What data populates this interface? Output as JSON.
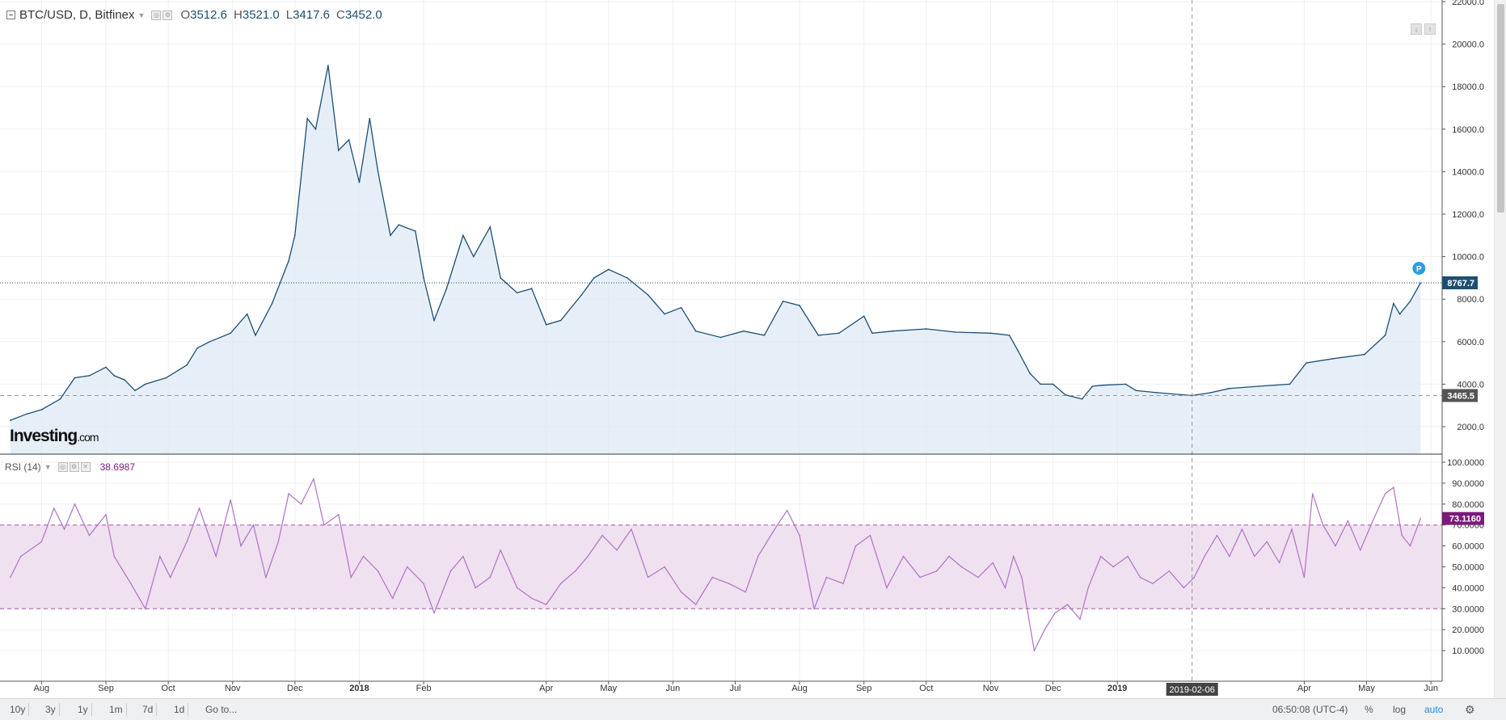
{
  "header": {
    "symbol": "BTC/USD, D, Bitfinex",
    "open_key": "O",
    "open_val": "3512.6",
    "high_key": "H",
    "high_val": "3521.0",
    "low_key": "L",
    "low_val": "3417.6",
    "close_key": "C",
    "close_val": "3452.0"
  },
  "rsi_header": {
    "label": "RSI (14)",
    "value": "38.6987"
  },
  "watermark": {
    "brand": "Investing",
    "suffix": ".com"
  },
  "badges": {
    "p": "P"
  },
  "colors": {
    "price_line": "#1d4e73",
    "price_fill": "#dde9f6",
    "rsi_line": "#b070c8",
    "rsi_band": "#f0e1f0",
    "rsi_label_bg": "#7b1a7b",
    "price_label_bg": "#1d4e73",
    "ref_label_bg": "#555555",
    "p_badge": "#2a9fe0"
  },
  "bottom_bar": {
    "ranges": [
      "10y",
      "3y",
      "1y",
      "1m",
      "7d",
      "1d"
    ],
    "goto": "Go to...",
    "time": "06:50:08 (UTC-4)",
    "percent": "%",
    "log": "log",
    "auto": "auto"
  },
  "chart_data": [
    {
      "type": "area",
      "title": "BTC/USD, D, Bitfinex",
      "x_tick_labels": [
        "Aug",
        "Sep",
        "Oct",
        "Nov",
        "Dec",
        "2018",
        "Feb",
        "Apr",
        "May",
        "Jun",
        "Jul",
        "Aug",
        "Sep",
        "Oct",
        "Nov",
        "Dec",
        "2019",
        "Apr",
        "May",
        "Jun"
      ],
      "y_ticks": [
        "22000.0",
        "20000.0",
        "18000.0",
        "16000.0",
        "14000.0",
        "12000.0",
        "10000.0",
        "8000.0",
        "6000.0",
        "4000.0",
        "2000.0"
      ],
      "ylim": [
        1000,
        22000
      ],
      "grid": true,
      "current_price_label": "8767.7",
      "crosshair_price_label": "3465.5",
      "crosshair_date_label": "2019-02-06",
      "series": [
        {
          "x": [
            "2017-07-17",
            "2017-07-25",
            "2017-08-01",
            "2017-08-10",
            "2017-08-17",
            "2017-08-24",
            "2017-09-01",
            "2017-09-05",
            "2017-09-10",
            "2017-09-15",
            "2017-09-20",
            "2017-09-30",
            "2017-10-10",
            "2017-10-15",
            "2017-10-21",
            "2017-10-31",
            "2017-11-08",
            "2017-11-12",
            "2017-11-20",
            "2017-11-28",
            "2017-12-01",
            "2017-12-07",
            "2017-12-11",
            "2017-12-17",
            "2017-12-22",
            "2017-12-27",
            "2018-01-01",
            "2018-01-06",
            "2018-01-10",
            "2018-01-16",
            "2018-01-20",
            "2018-01-28",
            "2018-02-01",
            "2018-02-06",
            "2018-02-12",
            "2018-02-20",
            "2018-02-25",
            "2018-03-05",
            "2018-03-10",
            "2018-03-18",
            "2018-03-25",
            "2018-04-01",
            "2018-04-08",
            "2018-04-18",
            "2018-04-24",
            "2018-05-01",
            "2018-05-10",
            "2018-05-20",
            "2018-05-28",
            "2018-06-05",
            "2018-06-12",
            "2018-06-24",
            "2018-07-05",
            "2018-07-15",
            "2018-07-24",
            "2018-08-01",
            "2018-08-10",
            "2018-08-20",
            "2018-09-01",
            "2018-09-05",
            "2018-09-15",
            "2018-10-01",
            "2018-10-15",
            "2018-11-01",
            "2018-11-10",
            "2018-11-14",
            "2018-11-20",
            "2018-11-25",
            "2018-12-01",
            "2018-12-07",
            "2018-12-15",
            "2018-12-20",
            "2018-12-25",
            "2019-01-05",
            "2019-01-10",
            "2019-01-20",
            "2019-02-06",
            "2019-02-15",
            "2019-02-24",
            "2019-03-10",
            "2019-03-25",
            "2019-04-02",
            "2019-04-15",
            "2019-04-30",
            "2019-05-10",
            "2019-05-14",
            "2019-05-17",
            "2019-05-22",
            "2019-05-27"
          ],
          "values": [
            2300,
            2600,
            2800,
            3300,
            4300,
            4400,
            4800,
            4400,
            4200,
            3700,
            4000,
            4300,
            4900,
            5700,
            6000,
            6400,
            7300,
            6300,
            7800,
            9800,
            11000,
            16500,
            16000,
            19000,
            15000,
            15500,
            13500,
            16500,
            14000,
            11000,
            11500,
            11200,
            9000,
            7000,
            8500,
            11000,
            10000,
            11400,
            9000,
            8300,
            8500,
            6800,
            7000,
            8200,
            9000,
            9400,
            9000,
            8200,
            7300,
            7600,
            6500,
            6200,
            6500,
            6300,
            7900,
            7700,
            6300,
            6400,
            7200,
            6400,
            6500,
            6600,
            6450,
            6400,
            6300,
            5600,
            4500,
            4000,
            4000,
            3500,
            3300,
            3900,
            3950,
            4000,
            3700,
            3600,
            3465,
            3600,
            3800,
            3900,
            4000,
            5000,
            5200,
            5400,
            6300,
            7800,
            7300,
            7900,
            8767.7
          ]
        }
      ]
    },
    {
      "type": "line",
      "title": "RSI (14)",
      "y_ticks": [
        "100.0000",
        "90.0000",
        "80.0000",
        "70.0000",
        "60.0000",
        "50.0000",
        "40.0000",
        "30.0000",
        "20.0000",
        "10.0000"
      ],
      "ylim": [
        5,
        100
      ],
      "band": [
        30,
        70
      ],
      "current_value_label": "73.1160",
      "series": [
        {
          "x": [
            "2017-07-17",
            "2017-07-22",
            "2017-08-01",
            "2017-08-07",
            "2017-08-12",
            "2017-08-17",
            "2017-08-24",
            "2017-09-01",
            "2017-09-05",
            "2017-09-13",
            "2017-09-20",
            "2017-09-27",
            "2017-10-02",
            "2017-10-10",
            "2017-10-16",
            "2017-10-24",
            "2017-10-31",
            "2017-11-05",
            "2017-11-11",
            "2017-11-17",
            "2017-11-23",
            "2017-11-28",
            "2017-12-04",
            "2017-12-10",
            "2017-12-15",
            "2017-12-22",
            "2017-12-28",
            "2018-01-03",
            "2018-01-10",
            "2018-01-17",
            "2018-01-24",
            "2018-02-01",
            "2018-02-06",
            "2018-02-14",
            "2018-02-20",
            "2018-02-26",
            "2018-03-05",
            "2018-03-10",
            "2018-03-18",
            "2018-03-25",
            "2018-04-01",
            "2018-04-08",
            "2018-04-15",
            "2018-04-21",
            "2018-04-28",
            "2018-05-05",
            "2018-05-12",
            "2018-05-20",
            "2018-05-28",
            "2018-06-05",
            "2018-06-12",
            "2018-06-20",
            "2018-06-28",
            "2018-07-06",
            "2018-07-12",
            "2018-07-20",
            "2018-07-26",
            "2018-08-01",
            "2018-08-08",
            "2018-08-14",
            "2018-08-22",
            "2018-08-28",
            "2018-09-04",
            "2018-09-12",
            "2018-09-20",
            "2018-09-28",
            "2018-10-06",
            "2018-10-12",
            "2018-10-18",
            "2018-10-26",
            "2018-11-02",
            "2018-11-08",
            "2018-11-12",
            "2018-11-16",
            "2018-11-22",
            "2018-11-27",
            "2018-12-02",
            "2018-12-08",
            "2018-12-14",
            "2018-12-18",
            "2018-12-24",
            "2018-12-30",
            "2019-01-06",
            "2019-01-12",
            "2019-01-18",
            "2019-01-26",
            "2019-02-02",
            "2019-02-07",
            "2019-02-12",
            "2019-02-18",
            "2019-02-24",
            "2019-03-02",
            "2019-03-08",
            "2019-03-14",
            "2019-03-20",
            "2019-03-26",
            "2019-04-01",
            "2019-04-05",
            "2019-04-10",
            "2019-04-16",
            "2019-04-22",
            "2019-04-28",
            "2019-05-04",
            "2019-05-10",
            "2019-05-14",
            "2019-05-18",
            "2019-05-22",
            "2019-05-27"
          ],
          "values": [
            45,
            55,
            62,
            78,
            68,
            80,
            65,
            75,
            55,
            42,
            30,
            55,
            45,
            62,
            78,
            55,
            82,
            60,
            70,
            45,
            62,
            85,
            80,
            92,
            70,
            75,
            45,
            55,
            48,
            35,
            50,
            42,
            28,
            48,
            55,
            40,
            45,
            58,
            40,
            35,
            32,
            42,
            48,
            55,
            65,
            58,
            68,
            45,
            50,
            38,
            32,
            45,
            42,
            38,
            55,
            68,
            77,
            65,
            30,
            45,
            42,
            60,
            65,
            40,
            55,
            45,
            48,
            55,
            50,
            45,
            52,
            40,
            55,
            45,
            10,
            20,
            28,
            32,
            25,
            40,
            55,
            50,
            55,
            45,
            42,
            48,
            40,
            45,
            55,
            65,
            55,
            68,
            55,
            62,
            52,
            68,
            45,
            85,
            70,
            60,
            72,
            58,
            72,
            85,
            88,
            65,
            60,
            73.116
          ]
        }
      ]
    }
  ]
}
